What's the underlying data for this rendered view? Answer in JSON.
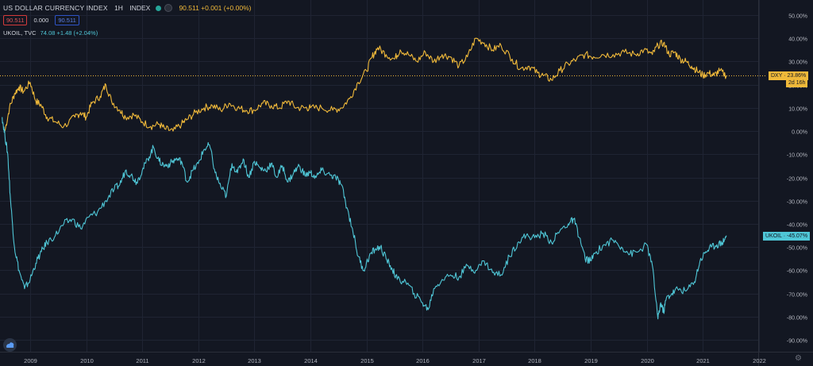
{
  "header": {
    "title": "US DOLLAR CURRENCY INDEX",
    "interval": "1H",
    "type": "INDEX",
    "value_text": "90.511 +0.001 (+0.00%)",
    "bid": "90.511",
    "spread": "0.000",
    "ask": "90.511",
    "series2_label": "UKOIL, TVC",
    "series2_value": "74.08 +1.48 (+2.04%)"
  },
  "tags": {
    "dxy": "DXY · 23.86%",
    "dxy_time": "2d 16h",
    "ukoil": "UKOIL · -45.07%"
  },
  "colors": {
    "dxy": "#f0b93a",
    "ukoil": "#4fc6d6",
    "background": "#131722",
    "grid": "#1f2433"
  },
  "icons": {
    "logo": "tradingview-logo-icon",
    "settings": "gear-icon"
  },
  "chart_data": {
    "type": "line",
    "x_ticks": [
      "2009",
      "2010",
      "2011",
      "2012",
      "2013",
      "2014",
      "2015",
      "2016",
      "2017",
      "2018",
      "2019",
      "2020",
      "2021",
      "2022"
    ],
    "y_ticks": [
      "50.00%",
      "40.00%",
      "30.00%",
      "20.00%",
      "10.00%",
      "0.00%",
      "-10.00%",
      "-20.00%",
      "-30.00%",
      "-40.00%",
      "-50.00%",
      "-60.00%",
      "-70.00%",
      "-80.00%",
      "-90.00%"
    ],
    "ylim": [
      -95,
      52
    ],
    "xlim": [
      2008.5,
      2022.5
    ],
    "series": [
      {
        "name": "DXY",
        "x": [
          2008.55,
          2008.63,
          2008.72,
          2008.8,
          2008.88,
          2009.0,
          2009.1,
          2009.2,
          2009.3,
          2009.45,
          2009.6,
          2009.8,
          2009.9,
          2010.0,
          2010.1,
          2010.25,
          2010.35,
          2010.45,
          2010.6,
          2010.7,
          2010.85,
          2011.0,
          2011.15,
          2011.3,
          2011.4,
          2011.55,
          2011.7,
          2011.8,
          2011.95,
          2012.1,
          2012.25,
          2012.4,
          2012.55,
          2012.7,
          2012.85,
          2013.0,
          2013.15,
          2013.3,
          2013.45,
          2013.6,
          2013.75,
          2013.9,
          2014.0,
          2014.2,
          2014.4,
          2014.55,
          2014.7,
          2014.85,
          2015.0,
          2015.1,
          2015.2,
          2015.35,
          2015.5,
          2015.6,
          2015.75,
          2015.9,
          2016.05,
          2016.2,
          2016.35,
          2016.5,
          2016.65,
          2016.8,
          2016.95,
          2017.1,
          2017.25,
          2017.4,
          2017.6,
          2017.75,
          2017.9,
          2018.05,
          2018.15,
          2018.3,
          2018.45,
          2018.6,
          2018.75,
          2018.9,
          2019.05,
          2019.2,
          2019.4,
          2019.6,
          2019.8,
          2019.95,
          2020.1,
          2020.2,
          2020.3,
          2020.4,
          2020.5,
          2020.6,
          2020.7,
          2020.8,
          2020.9,
          2021.0,
          2021.1,
          2021.2,
          2021.3,
          2021.42
        ],
        "values": [
          0,
          10,
          16,
          19,
          17,
          21,
          13,
          11,
          6,
          4,
          2,
          6,
          8,
          6,
          12,
          15,
          20,
          13,
          9,
          6,
          7,
          4,
          2,
          3,
          1,
          0,
          3,
          5,
          8,
          10,
          11,
          9,
          12,
          10,
          9,
          9,
          12,
          11,
          10,
          13,
          10,
          10,
          10,
          10,
          9,
          10,
          14,
          21,
          26,
          32,
          36,
          33,
          31,
          35,
          33,
          30,
          34,
          30,
          33,
          32,
          28,
          32,
          40,
          38,
          35,
          37,
          31,
          27,
          28,
          25,
          24,
          22,
          26,
          29,
          31,
          33,
          32,
          33,
          33,
          34,
          33,
          35,
          33,
          37,
          38,
          33,
          34,
          31,
          30,
          28,
          26,
          24,
          25,
          24,
          26,
          23.86
        ]
      },
      {
        "name": "UKOIL",
        "x": [
          2008.5,
          2008.55,
          2008.6,
          2008.65,
          2008.72,
          2008.8,
          2008.9,
          2009.0,
          2009.1,
          2009.2,
          2009.3,
          2009.45,
          2009.6,
          2009.75,
          2009.9,
          2010.05,
          2010.2,
          2010.35,
          2010.5,
          2010.6,
          2010.7,
          2010.8,
          2010.9,
          2011.0,
          2011.1,
          2011.2,
          2011.3,
          2011.4,
          2011.5,
          2011.6,
          2011.7,
          2011.8,
          2011.9,
          2012.0,
          2012.1,
          2012.2,
          2012.3,
          2012.4,
          2012.5,
          2012.6,
          2012.7,
          2012.8,
          2012.9,
          2013.0,
          2013.1,
          2013.2,
          2013.3,
          2013.4,
          2013.5,
          2013.6,
          2013.7,
          2013.8,
          2013.9,
          2014.0,
          2014.1,
          2014.2,
          2014.35,
          2014.45,
          2014.55,
          2014.65,
          2014.75,
          2014.85,
          2014.95,
          2015.05,
          2015.15,
          2015.25,
          2015.35,
          2015.45,
          2015.55,
          2015.7,
          2015.85,
          2016.0,
          2016.1,
          2016.2,
          2016.35,
          2016.5,
          2016.65,
          2016.8,
          2016.95,
          2017.1,
          2017.25,
          2017.4,
          2017.55,
          2017.7,
          2017.85,
          2018.0,
          2018.15,
          2018.3,
          2018.45,
          2018.6,
          2018.7,
          2018.8,
          2018.9,
          2019.0,
          2019.1,
          2019.25,
          2019.4,
          2019.55,
          2019.7,
          2019.85,
          2020.0,
          2020.1,
          2020.2,
          2020.25,
          2020.3,
          2020.35,
          2020.45,
          2020.55,
          2020.7,
          2020.85,
          2020.95,
          2021.05,
          2021.15,
          2021.25,
          2021.35,
          2021.42
        ],
        "values": [
          6,
          -2,
          -10,
          -30,
          -50,
          -60,
          -68,
          -64,
          -57,
          -52,
          -48,
          -45,
          -40,
          -38,
          -42,
          -37,
          -35,
          -30,
          -25,
          -23,
          -17,
          -19,
          -22,
          -17,
          -12,
          -7,
          -13,
          -15,
          -14,
          -12,
          -13,
          -22,
          -17,
          -14,
          -8,
          -6,
          -18,
          -24,
          -28,
          -14,
          -18,
          -12,
          -20,
          -13,
          -16,
          -17,
          -14,
          -20,
          -15,
          -22,
          -18,
          -15,
          -19,
          -18,
          -20,
          -17,
          -19,
          -20,
          -23,
          -33,
          -42,
          -54,
          -60,
          -54,
          -51,
          -50,
          -55,
          -59,
          -64,
          -65,
          -70,
          -74,
          -77,
          -68,
          -64,
          -62,
          -63,
          -58,
          -60,
          -56,
          -61,
          -62,
          -54,
          -48,
          -45,
          -46,
          -44,
          -48,
          -43,
          -40,
          -38,
          -46,
          -55,
          -56,
          -52,
          -49,
          -47,
          -50,
          -53,
          -52,
          -49,
          -58,
          -81,
          -74,
          -78,
          -72,
          -70,
          -68,
          -69,
          -65,
          -56,
          -52,
          -50,
          -49,
          -48,
          -45.07
        ]
      }
    ],
    "dxy_reference_line": 23.86,
    "last_labels": {
      "DXY": 23.86,
      "UKOIL": -45.07
    }
  }
}
